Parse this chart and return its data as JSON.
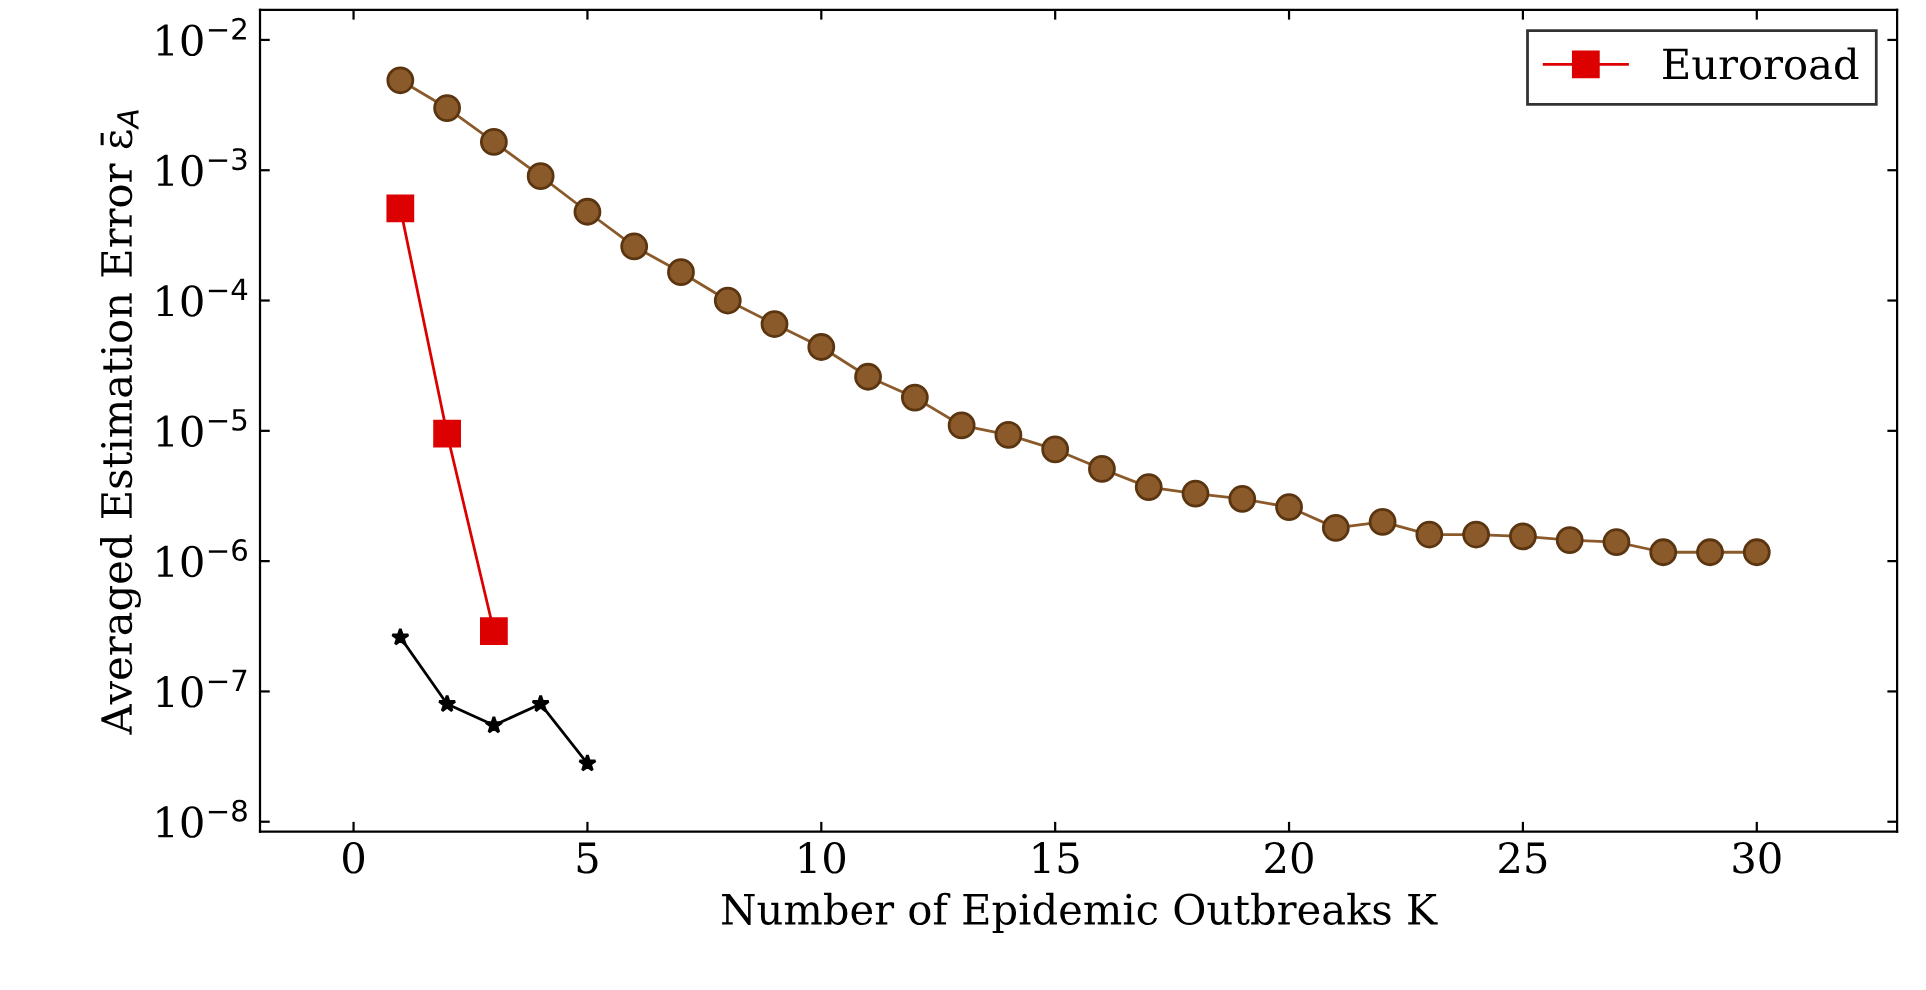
{
  "chart_data": {
    "type": "line",
    "xlabel": "Number of Epidemic Outbreaks K",
    "ylabel": "Averaged Estimation Error ε̄$_{A}$",
    "log": "y",
    "grid": false,
    "legend": "top right",
    "xlim": [
      -2,
      33
    ],
    "xticks": [
      0,
      5,
      10,
      15,
      20,
      25,
      30
    ],
    "ylim": [
      8.4e-09,
      0.017
    ],
    "yticks": [
      {
        "value": 1e-08,
        "label": "10$^{−8}$"
      },
      {
        "value": 1e-07,
        "label": "10$^{−7}$"
      },
      {
        "value": 1e-06,
        "label": "10$^{−6}$"
      },
      {
        "value": 1e-05,
        "label": "10$^{−5}$"
      },
      {
        "value": 0.0001,
        "label": "10$^{−4}$"
      },
      {
        "value": 0.001,
        "label": "10$^{−3}$"
      },
      {
        "value": 0.01,
        "label": "10$^{−2}$"
      }
    ],
    "series": [
      {
        "name": "Euroroad",
        "color": "#dd0000",
        "marker": "square",
        "x": [
          1,
          2,
          3
        ],
        "values": [
          0.00051,
          9.5e-06,
          2.9e-07
        ]
      },
      {
        "color": "#8b5a2b",
        "marker": "circle",
        "x": [
          1,
          2,
          3,
          4,
          5,
          6,
          7,
          8,
          9,
          10,
          11,
          12,
          13,
          14,
          15,
          16,
          17,
          18,
          19,
          20,
          21,
          22,
          23,
          24,
          25,
          26,
          27,
          28,
          29,
          30
        ],
        "values": [
          0.0049,
          0.003,
          0.00165,
          0.0009,
          0.00048,
          0.00026,
          0.000165,
          0.0001,
          6.6e-05,
          4.4e-05,
          2.6e-05,
          1.8e-05,
          1.1e-05,
          9.3e-06,
          7.2e-06,
          5.1e-06,
          3.7e-06,
          3.3e-06,
          3e-06,
          2.6e-06,
          1.8e-06,
          2e-06,
          1.6e-06,
          1.6e-06,
          1.55e-06,
          1.45e-06,
          1.4e-06,
          1.17e-06,
          1.17e-06,
          1.17e-06
        ]
      },
      {
        "color": "#000000",
        "marker": "star",
        "x": [
          1,
          2,
          3,
          4,
          5
        ],
        "values": [
          2.6e-07,
          8e-08,
          5.5e-08,
          8e-08,
          2.8e-08
        ]
      }
    ]
  }
}
